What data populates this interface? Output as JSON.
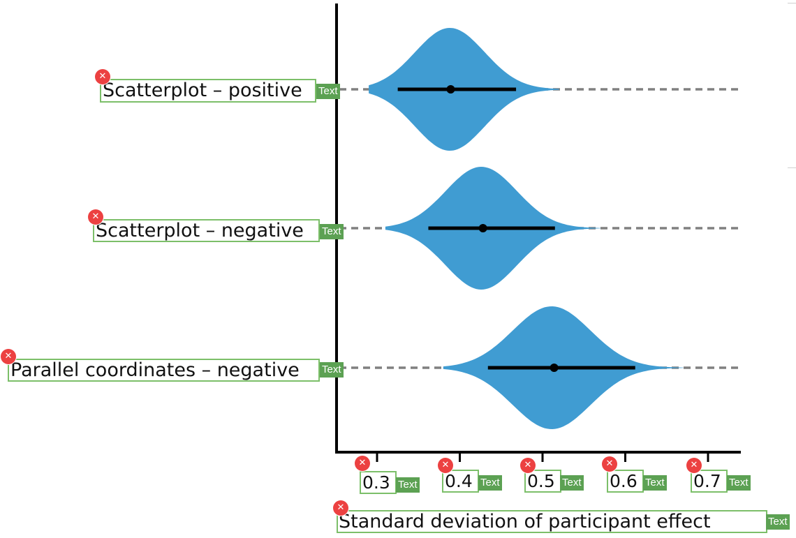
{
  "chart_data": {
    "type": "violin",
    "categories": [
      "Scatterplot – positive",
      "Scatterplot – negative",
      "Parallel coordinates – negative"
    ],
    "xlabel": "Standard deviation of participant effect",
    "ticks": [
      "0.3",
      "0.4",
      "0.5",
      "0.6",
      "0.7"
    ],
    "tick_values": [
      0.3,
      0.4,
      0.5,
      0.6,
      0.7
    ],
    "xlim": [
      0.25,
      0.74
    ],
    "series": [
      {
        "median": 0.389,
        "ci": [
          0.325,
          0.468
        ],
        "mode": 0.388,
        "spread": 0.042,
        "tails": [
          0.29,
          0.52
        ]
      },
      {
        "median": 0.428,
        "ci": [
          0.362,
          0.515
        ],
        "mode": 0.426,
        "spread": 0.043,
        "tails": [
          0.31,
          0.57
        ]
      },
      {
        "median": 0.514,
        "ci": [
          0.434,
          0.612
        ],
        "mode": 0.511,
        "spread": 0.047,
        "tails": [
          0.38,
          0.67
        ]
      }
    ],
    "colors": {
      "violin": "#409cd2",
      "reference_line": "#808080",
      "axis": "#000000"
    },
    "grid": false,
    "legend": "none"
  },
  "annotations": {
    "tag_label": "Text",
    "close_glyph": "✕",
    "close_icon": "close-icon"
  }
}
